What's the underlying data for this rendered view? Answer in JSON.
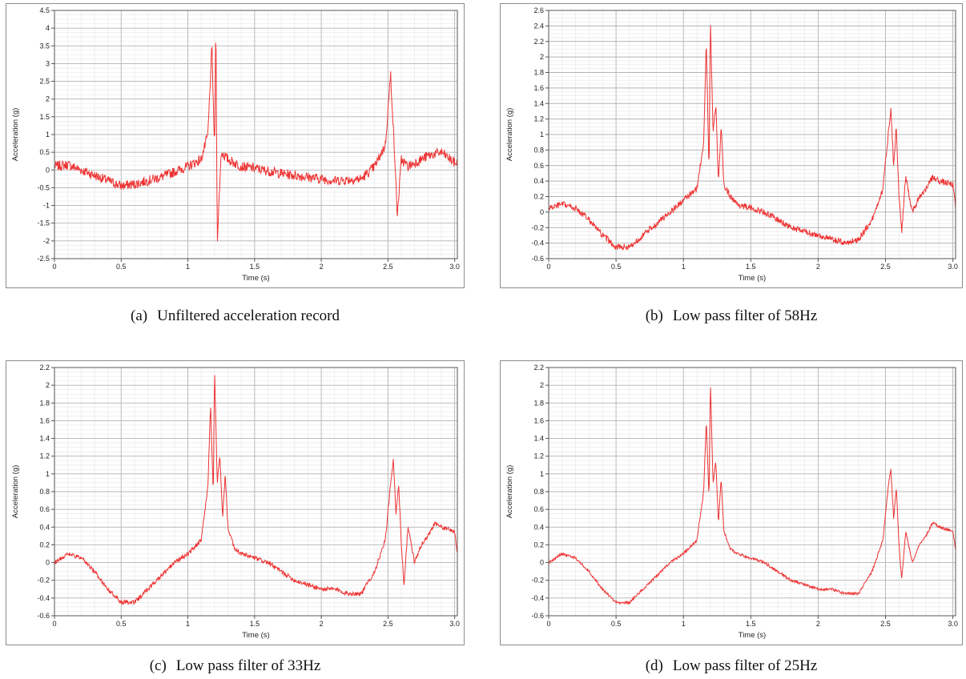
{
  "figures": [
    {
      "label": "(a)",
      "caption": "Unfiltered acceleration record"
    },
    {
      "label": "(b)",
      "caption": "Low pass filter of 58Hz"
    },
    {
      "label": "(c)",
      "caption": "Low pass filter of 33Hz"
    },
    {
      "label": "(d)",
      "caption": "Low pass filter of 25Hz"
    }
  ],
  "chart_data": [
    {
      "type": "line",
      "title": "",
      "xlabel": "Time (s)",
      "ylabel": "Acceleration (g)",
      "xlim": [
        0,
        3.02
      ],
      "ylim": [
        -2.5,
        4.5
      ],
      "xticks": [
        "0",
        "0.5",
        "1",
        "1.5",
        "2",
        "2.5",
        "3.0"
      ],
      "yticks": [
        "-2.5",
        "-2",
        "-1.5",
        "-1",
        "-0.5",
        "0",
        "0.5",
        "1",
        "1.5",
        "2",
        "2.5",
        "3",
        "3.5",
        "4",
        "4.5"
      ],
      "grid": true,
      "line_color": "#ee3333",
      "series": [
        {
          "noise_amplitude": 0.14,
          "x": [
            0,
            0.1,
            0.2,
            0.3,
            0.4,
            0.5,
            0.6,
            0.7,
            0.8,
            0.9,
            1.0,
            1.1,
            1.15,
            1.18,
            1.2,
            1.21,
            1.22,
            1.25,
            1.3,
            1.4,
            1.5,
            1.7,
            1.9,
            2.1,
            2.3,
            2.4,
            2.48,
            2.52,
            2.55,
            2.57,
            2.6,
            2.65,
            2.7,
            2.8,
            2.9,
            3.0
          ],
          "y": [
            0.1,
            0.15,
            0.0,
            -0.15,
            -0.3,
            -0.45,
            -0.4,
            -0.3,
            -0.2,
            -0.05,
            0.1,
            0.3,
            1.0,
            3.5,
            0.5,
            4.2,
            -2.0,
            0.5,
            0.3,
            0.1,
            0.05,
            -0.1,
            -0.2,
            -0.3,
            -0.25,
            0.1,
            0.7,
            2.7,
            0.4,
            -1.3,
            0.3,
            0.1,
            0.2,
            0.4,
            0.5,
            0.2
          ]
        }
      ]
    },
    {
      "type": "line",
      "title": "",
      "xlabel": "Time (s)",
      "ylabel": "Acceleration (g)",
      "xlim": [
        0,
        3.02
      ],
      "ylim": [
        -0.6,
        2.6
      ],
      "xticks": [
        "0",
        "0.5",
        "1",
        "1.5",
        "2",
        "2.5",
        "3.0"
      ],
      "yticks": [
        "-0.6",
        "-0.4",
        "-0.2",
        "0",
        "0.2",
        "0.4",
        "0.6",
        "0.8",
        "1",
        "1.2",
        "1.4",
        "1.6",
        "1.8",
        "2",
        "2.2",
        "2.4",
        "2.6"
      ],
      "grid": true,
      "line_color": "#ee3333",
      "series": [
        {
          "noise_amplitude": 0.04,
          "x": [
            0,
            0.1,
            0.2,
            0.3,
            0.4,
            0.5,
            0.6,
            0.7,
            0.8,
            0.9,
            1.0,
            1.1,
            1.15,
            1.17,
            1.19,
            1.2,
            1.22,
            1.24,
            1.26,
            1.28,
            1.3,
            1.35,
            1.4,
            1.5,
            1.6,
            1.7,
            1.8,
            1.9,
            2.0,
            2.1,
            2.2,
            2.3,
            2.4,
            2.48,
            2.52,
            2.54,
            2.56,
            2.58,
            2.6,
            2.62,
            2.65,
            2.7,
            2.75,
            2.8,
            2.85,
            2.9,
            3.0,
            3.02
          ],
          "y": [
            0.05,
            0.1,
            0.05,
            -0.1,
            -0.3,
            -0.45,
            -0.45,
            -0.3,
            -0.15,
            0.0,
            0.15,
            0.3,
            0.9,
            2.2,
            0.5,
            2.5,
            1.0,
            1.4,
            0.4,
            1.1,
            0.35,
            0.2,
            0.1,
            0.05,
            0.0,
            -0.1,
            -0.2,
            -0.25,
            -0.3,
            -0.35,
            -0.4,
            -0.35,
            -0.1,
            0.3,
            1.0,
            1.35,
            0.6,
            1.1,
            0.2,
            -0.25,
            0.45,
            0.0,
            0.2,
            0.3,
            0.45,
            0.4,
            0.35,
            0.05
          ]
        }
      ]
    },
    {
      "type": "line",
      "title": "",
      "xlabel": "Time (s)",
      "ylabel": "Acceleration (g)",
      "xlim": [
        0,
        3.02
      ],
      "ylim": [
        -0.6,
        2.2
      ],
      "xticks": [
        "0",
        "0.5",
        "1",
        "1.5",
        "2",
        "2.5",
        "3.0"
      ],
      "yticks": [
        "-0.6",
        "-0.4",
        "-0.2",
        "0",
        "0.2",
        "0.4",
        "0.6",
        "0.8",
        "1",
        "1.2",
        "1.4",
        "1.6",
        "1.8",
        "2",
        "2.2"
      ],
      "grid": true,
      "line_color": "#ee3333",
      "series": [
        {
          "noise_amplitude": 0.025,
          "x": [
            0,
            0.1,
            0.2,
            0.3,
            0.4,
            0.5,
            0.6,
            0.7,
            0.8,
            0.9,
            1.0,
            1.1,
            1.15,
            1.17,
            1.19,
            1.2,
            1.22,
            1.24,
            1.26,
            1.28,
            1.3,
            1.35,
            1.4,
            1.5,
            1.6,
            1.7,
            1.8,
            1.9,
            2.0,
            2.1,
            2.2,
            2.3,
            2.4,
            2.48,
            2.52,
            2.54,
            2.56,
            2.58,
            2.6,
            2.62,
            2.65,
            2.7,
            2.75,
            2.8,
            2.85,
            2.9,
            3.0,
            3.02
          ],
          "y": [
            0.0,
            0.1,
            0.05,
            -0.1,
            -0.3,
            -0.45,
            -0.45,
            -0.3,
            -0.15,
            0.0,
            0.1,
            0.25,
            0.85,
            1.8,
            0.75,
            2.2,
            0.9,
            1.2,
            0.5,
            1.0,
            0.4,
            0.15,
            0.1,
            0.05,
            0.0,
            -0.1,
            -0.2,
            -0.25,
            -0.3,
            -0.3,
            -0.35,
            -0.35,
            -0.1,
            0.25,
            0.9,
            1.15,
            0.55,
            0.9,
            0.2,
            -0.25,
            0.4,
            0.0,
            0.2,
            0.3,
            0.45,
            0.4,
            0.35,
            0.1
          ]
        }
      ]
    },
    {
      "type": "line",
      "title": "",
      "xlabel": "Time (s)",
      "ylabel": "Acceleration (g)",
      "xlim": [
        0,
        3.02
      ],
      "ylim": [
        -0.6,
        2.2
      ],
      "xticks": [
        "0",
        "0.5",
        "1",
        "1.5",
        "2",
        "2.5",
        "3.0"
      ],
      "yticks": [
        "-0.6",
        "-0.4",
        "-0.2",
        "0",
        "0.2",
        "0.4",
        "0.6",
        "0.8",
        "1",
        "1.2",
        "1.4",
        "1.6",
        "1.8",
        "2",
        "2.2"
      ],
      "grid": true,
      "line_color": "#ee3333",
      "series": [
        {
          "noise_amplitude": 0.015,
          "x": [
            0,
            0.1,
            0.2,
            0.3,
            0.4,
            0.5,
            0.6,
            0.7,
            0.8,
            0.9,
            1.0,
            1.1,
            1.15,
            1.17,
            1.19,
            1.2,
            1.22,
            1.24,
            1.26,
            1.28,
            1.3,
            1.35,
            1.4,
            1.5,
            1.6,
            1.7,
            1.8,
            1.9,
            2.0,
            2.1,
            2.2,
            2.3,
            2.4,
            2.48,
            2.52,
            2.54,
            2.56,
            2.58,
            2.6,
            2.62,
            2.65,
            2.7,
            2.75,
            2.8,
            2.85,
            2.9,
            3.0,
            3.02
          ],
          "y": [
            0.0,
            0.1,
            0.05,
            -0.1,
            -0.3,
            -0.45,
            -0.45,
            -0.3,
            -0.15,
            0.0,
            0.1,
            0.25,
            0.8,
            1.6,
            0.7,
            2.05,
            0.9,
            1.15,
            0.45,
            0.95,
            0.35,
            0.15,
            0.1,
            0.05,
            0.0,
            -0.1,
            -0.2,
            -0.25,
            -0.3,
            -0.3,
            -0.35,
            -0.35,
            -0.1,
            0.25,
            0.85,
            1.05,
            0.5,
            0.85,
            0.2,
            -0.2,
            0.35,
            0.0,
            0.2,
            0.3,
            0.45,
            0.4,
            0.35,
            0.15
          ]
        }
      ]
    }
  ]
}
